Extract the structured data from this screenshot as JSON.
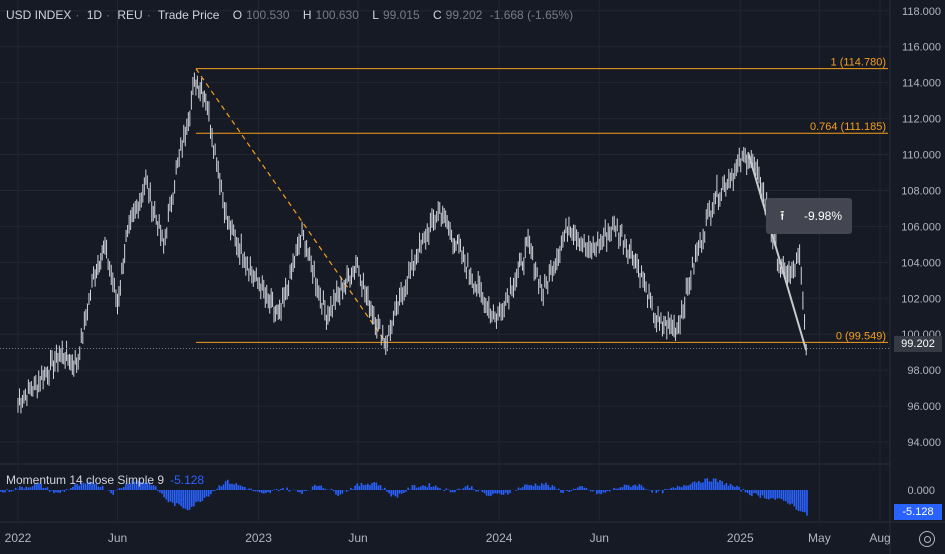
{
  "header": {
    "symbol": "USD INDEX",
    "interval": "1D",
    "exchange": "REU",
    "price_type": "Trade Price",
    "open_label": "O",
    "open": "100.530",
    "high_label": "H",
    "high": "100.630",
    "low_label": "L",
    "low": "99.015",
    "close_label": "C",
    "close": "99.202",
    "change": "-1.668 (-1.65%)"
  },
  "momentum": {
    "label": "Momentum 14 close Simple 9",
    "value": "-5.128",
    "zero_label": "0.000"
  },
  "last_price_tag": "99.202",
  "momentum_tag": "-5.128",
  "measure_label": "-9.98%",
  "colors": {
    "background": "#161a25",
    "price": "#d1d4dc",
    "fib": "#f59e1b",
    "momentum": "#2962ff",
    "grid": "#232632"
  },
  "chart_data": {
    "type": "line",
    "title": "USD INDEX",
    "ylim": [
      93.0,
      118.6
    ],
    "y_ticks": [
      "118.000",
      "116.000",
      "114.000",
      "112.000",
      "110.000",
      "108.000",
      "106.000",
      "104.000",
      "102.000",
      "100.000",
      "98.000",
      "96.000",
      "94.000"
    ],
    "x_ticks": [
      "2022",
      "Jun",
      "2023",
      "Jun",
      "2024",
      "Jun",
      "2025",
      "May",
      "Aug"
    ],
    "x_tick_dates": [
      "2022-01-01",
      "2022-06-01",
      "2023-01-01",
      "2023-06-01",
      "2024-01-01",
      "2024-06-01",
      "2025-01-01",
      "2025-05-01",
      "2025-08-01"
    ],
    "series": [
      {
        "values_x": [
          "2022-01-01",
          "2022-01-28",
          "2022-03-07",
          "2022-03-31",
          "2022-04-28",
          "2022-05-13",
          "2022-06-01",
          "2022-06-14",
          "2022-07-14",
          "2022-08-10",
          "2022-08-29",
          "2022-09-28",
          "2022-10-13",
          "2022-11-15",
          "2022-12-15",
          "2023-01-18",
          "2023-02-02",
          "2023-03-08",
          "2023-04-14",
          "2023-05-31",
          "2023-06-16",
          "2023-07-13",
          "2023-08-24",
          "2023-09-14",
          "2023-10-03",
          "2023-11-28",
          "2023-12-28",
          "2024-01-30",
          "2024-02-14",
          "2024-03-08",
          "2024-04-16",
          "2024-05-16",
          "2024-06-26",
          "2024-07-26",
          "2024-08-27",
          "2024-09-27",
          "2024-10-25",
          "2024-11-22",
          "2025-01-13",
          "2025-02-03",
          "2025-03-03",
          "2025-03-18",
          "2025-04-01",
          "2025-04-11"
        ],
        "values_y": [
          96.2,
          97.2,
          98.9,
          98.3,
          103.6,
          104.8,
          101.8,
          105.2,
          108.5,
          104.9,
          109.0,
          114.2,
          113.2,
          106.2,
          104.0,
          101.6,
          101.0,
          105.6,
          101.0,
          104.0,
          101.8,
          99.5,
          104.0,
          105.6,
          107.0,
          102.6,
          100.8,
          103.5,
          104.9,
          102.3,
          106.2,
          104.5,
          106.0,
          104.2,
          100.6,
          100.3,
          104.2,
          107.6,
          110.0,
          108.2,
          103.6,
          103.3,
          104.2,
          99.202
        ]
      }
    ],
    "fib_levels": [
      {
        "label": "1 (114.780)",
        "value": 114.78
      },
      {
        "label": "0.764 (111.185)",
        "value": 111.185
      },
      {
        "label": "0 (99.549)",
        "value": 99.549
      }
    ],
    "momentum_series": [
      -0.5,
      0.4,
      1.2,
      -0.8,
      0.9,
      1.5,
      -0.6,
      2.0,
      1.4,
      -2.5,
      -3.8,
      -1.2,
      1.8,
      0.6,
      -1.0,
      0.4,
      -0.5,
      1.1,
      -0.8,
      0.9,
      1.6,
      -1.5,
      0.7,
      1.0,
      -0.3,
      0.8,
      -1.2,
      -0.6,
      0.9,
      1.3,
      -0.4,
      0.5,
      -0.9,
      0.6,
      1.1,
      -0.6,
      0.4,
      1.7,
      2.1,
      0.9,
      -0.8,
      -1.6,
      -2.4,
      -5.128
    ],
    "momentum_ylim": [
      -6,
      4
    ]
  }
}
